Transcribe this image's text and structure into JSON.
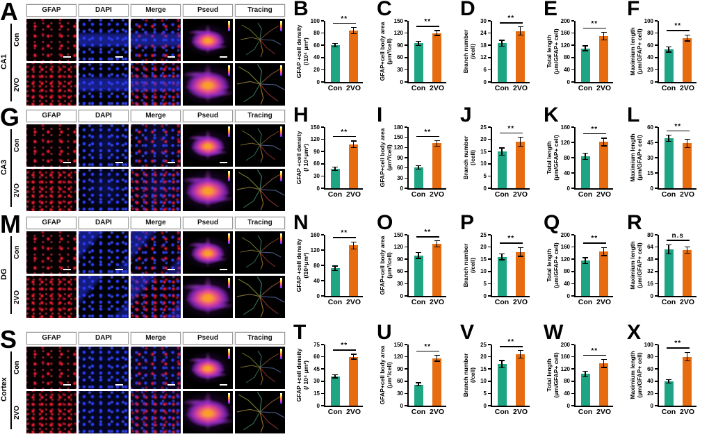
{
  "figure": {
    "panel_columns": [
      "GFAP",
      "DAPI",
      "Merge",
      "Pseud",
      "Tracing"
    ],
    "row_labels": [
      "Con",
      "2VO"
    ],
    "blocks": [
      {
        "letter": "A",
        "region": "CA1"
      },
      {
        "letter": "G",
        "region": "CA3"
      },
      {
        "letter": "M",
        "region": "DG"
      },
      {
        "letter": "S",
        "region": "Cortex"
      }
    ]
  },
  "colors": {
    "con_bar": "#1ea583",
    "vo_bar": "#e66c0f",
    "gfap_red": "#e01b2d",
    "dapi_blue": "#2a3cf0",
    "axis": "#000000"
  },
  "chart_data": [
    {
      "panel": "B",
      "type": "bar",
      "region": "CA1",
      "categories": [
        "Con",
        "2VO"
      ],
      "values": [
        60,
        84
      ],
      "errors": [
        3,
        5
      ],
      "ylabel_line1": "GFAP +cell density",
      "ylabel_line2": "(/10⁴ μm²)",
      "ylim": [
        0,
        100
      ],
      "ystep": 20,
      "sig": "**"
    },
    {
      "panel": "C",
      "type": "bar",
      "region": "CA1",
      "categories": [
        "Con",
        "2VO"
      ],
      "values": [
        95,
        120
      ],
      "errors": [
        5,
        6
      ],
      "ylabel_line1": "GFAP+cell body area",
      "ylabel_line2": "(μm²/cell)",
      "ylim": [
        0,
        150
      ],
      "ystep": 30,
      "sig": "**"
    },
    {
      "panel": "D",
      "type": "bar",
      "region": "CA1",
      "categories": [
        "Con",
        "2VO"
      ],
      "values": [
        19,
        25
      ],
      "errors": [
        1.5,
        2
      ],
      "ylabel_line1": "Branch number",
      "ylabel_line2": "(/cell)",
      "ylim": [
        0,
        30
      ],
      "ystep": 6,
      "sig": "**"
    },
    {
      "panel": "E",
      "type": "bar",
      "region": "CA1",
      "categories": [
        "Con",
        "2VO"
      ],
      "values": [
        110,
        150
      ],
      "errors": [
        8,
        12
      ],
      "ylabel_line1": "Total length",
      "ylabel_line2": "(μm/GFAP+ cell)",
      "ylim": [
        0,
        200
      ],
      "ystep": 40,
      "sig": "**"
    },
    {
      "panel": "F",
      "type": "bar",
      "region": "CA1",
      "categories": [
        "Con",
        "2VO"
      ],
      "values": [
        53,
        72
      ],
      "errors": [
        4,
        5
      ],
      "ylabel_line1": "Maximium length",
      "ylabel_line2": "(μm/GFAP+ cell)",
      "ylim": [
        0,
        100
      ],
      "ystep": 20,
      "sig": "**"
    },
    {
      "panel": "H",
      "type": "bar",
      "region": "CA3",
      "categories": [
        "Con",
        "2VO"
      ],
      "values": [
        48,
        108
      ],
      "errors": [
        4,
        8
      ],
      "ylabel_line1": "GFAP +cell density",
      "ylabel_line2": "(/ 10⁴μm²)",
      "ylim": [
        0,
        150
      ],
      "ystep": 30,
      "sig": "**"
    },
    {
      "panel": "I",
      "type": "bar",
      "region": "CA3",
      "categories": [
        "Con",
        "2VO"
      ],
      "values": [
        61,
        132
      ],
      "errors": [
        5,
        8
      ],
      "ylabel_line1": "GFAP+cell body area",
      "ylabel_line2": "(μm²/cell)",
      "ylim": [
        0,
        180
      ],
      "ystep": 30,
      "sig": "**"
    },
    {
      "panel": "J",
      "type": "bar",
      "region": "CA3",
      "categories": [
        "Con",
        "2VO"
      ],
      "values": [
        15,
        19
      ],
      "errors": [
        1.5,
        1.8
      ],
      "ylabel_line1": "Branch number",
      "ylabel_line2": "(/cell)",
      "ylim": [
        0,
        25
      ],
      "ystep": 5,
      "sig": "**"
    },
    {
      "panel": "K",
      "type": "bar",
      "region": "CA3",
      "categories": [
        "Con",
        "2VO"
      ],
      "values": [
        84,
        121
      ],
      "errors": [
        8,
        10
      ],
      "ylabel_line1": "Total length",
      "ylabel_line2": "(μm/GFAP+ cell)",
      "ylim": [
        0,
        160
      ],
      "ystep": 40,
      "sig": "**"
    },
    {
      "panel": "L",
      "type": "bar",
      "region": "CA3",
      "categories": [
        "Con",
        "2VO"
      ],
      "values": [
        49,
        44
      ],
      "errors": [
        3,
        4
      ],
      "ylabel_line1": "Maximium length",
      "ylabel_line2": "(μm/GFAP+ cell)",
      "ylim": [
        0,
        60
      ],
      "ystep": 15,
      "sig": "**"
    },
    {
      "panel": "N",
      "type": "bar",
      "region": "DG",
      "categories": [
        "Con",
        "2VO"
      ],
      "values": [
        72,
        132
      ],
      "errors": [
        6,
        9
      ],
      "ylabel_line1": "GFAP +cell density",
      "ylabel_line2": "(/10⁴μm²)",
      "ylim": [
        0,
        160
      ],
      "ystep": 40,
      "sig": "**"
    },
    {
      "panel": "O",
      "type": "bar",
      "region": "DG",
      "categories": [
        "Con",
        "2VO"
      ],
      "values": [
        99,
        128
      ],
      "errors": [
        7,
        8
      ],
      "ylabel_line1": "GFAP+cell body area",
      "ylabel_line2": "(μm²/cell)",
      "ylim": [
        0,
        150
      ],
      "ystep": 30,
      "sig": "**"
    },
    {
      "panel": "P",
      "type": "bar",
      "region": "DG",
      "categories": [
        "Con",
        "2VO"
      ],
      "values": [
        16,
        18
      ],
      "errors": [
        1.2,
        1.8
      ],
      "ylabel_line1": "Branch number",
      "ylabel_line2": "(/cell)",
      "ylim": [
        0,
        25
      ],
      "ystep": 5,
      "sig": "**"
    },
    {
      "panel": "Q",
      "type": "bar",
      "region": "DG",
      "categories": [
        "Con",
        "2VO"
      ],
      "values": [
        115,
        145
      ],
      "errors": [
        10,
        13
      ],
      "ylabel_line1": "Total length",
      "ylabel_line2": "(μm/GFAP+ cell)",
      "ylim": [
        0,
        200
      ],
      "ystep": 40,
      "sig": "**"
    },
    {
      "panel": "R",
      "type": "bar",
      "region": "DG",
      "categories": [
        "Con",
        "2VO"
      ],
      "values": [
        61,
        60
      ],
      "errors": [
        6,
        4
      ],
      "ylabel_line1": "Maximium length",
      "ylabel_line2": "(μm/GFAP+ cell)",
      "ylim": [
        0,
        80
      ],
      "ystep": 16,
      "sig": "n.s"
    },
    {
      "panel": "T",
      "type": "bar",
      "region": "Cortex",
      "categories": [
        "Con",
        "2VO"
      ],
      "values": [
        36,
        60
      ],
      "errors": [
        2,
        3
      ],
      "ylabel_line1": "GFAP +cell density",
      "ylabel_line2": "(/ 10⁴ μm²)",
      "ylim": [
        0,
        75
      ],
      "ystep": 15,
      "sig": "**"
    },
    {
      "panel": "U",
      "type": "bar",
      "region": "Cortex",
      "categories": [
        "Con",
        "2VO"
      ],
      "values": [
        52,
        116
      ],
      "errors": [
        4,
        7
      ],
      "ylabel_line1": "GFAP+cell body area",
      "ylabel_line2": "(μm²/cell)",
      "ylim": [
        0,
        150
      ],
      "ystep": 30,
      "sig": "**"
    },
    {
      "panel": "V",
      "type": "bar",
      "region": "Cortex",
      "categories": [
        "Con",
        "2VO"
      ],
      "values": [
        17,
        21
      ],
      "errors": [
        1.5,
        1.5
      ],
      "ylabel_line1": "Branch number",
      "ylabel_line2": "(/cell)",
      "ylim": [
        0,
        25
      ],
      "ystep": 5,
      "sig": "**"
    },
    {
      "panel": "W",
      "type": "bar",
      "region": "Cortex",
      "categories": [
        "Con",
        "2VO"
      ],
      "values": [
        104,
        138
      ],
      "errors": [
        9,
        13
      ],
      "ylabel_line1": "Total length",
      "ylabel_line2": "(μm/GFAP+ cell)",
      "ylim": [
        0,
        200
      ],
      "ystep": 40,
      "sig": "**"
    },
    {
      "panel": "X",
      "type": "bar",
      "region": "Cortex",
      "categories": [
        "Con",
        "2VO"
      ],
      "values": [
        40,
        80
      ],
      "errors": [
        3,
        7
      ],
      "ylabel_line1": "Maximium length",
      "ylabel_line2": "(μm/GFAP+ cell)",
      "ylim": [
        0,
        100
      ],
      "ystep": 20,
      "sig": "**"
    }
  ]
}
